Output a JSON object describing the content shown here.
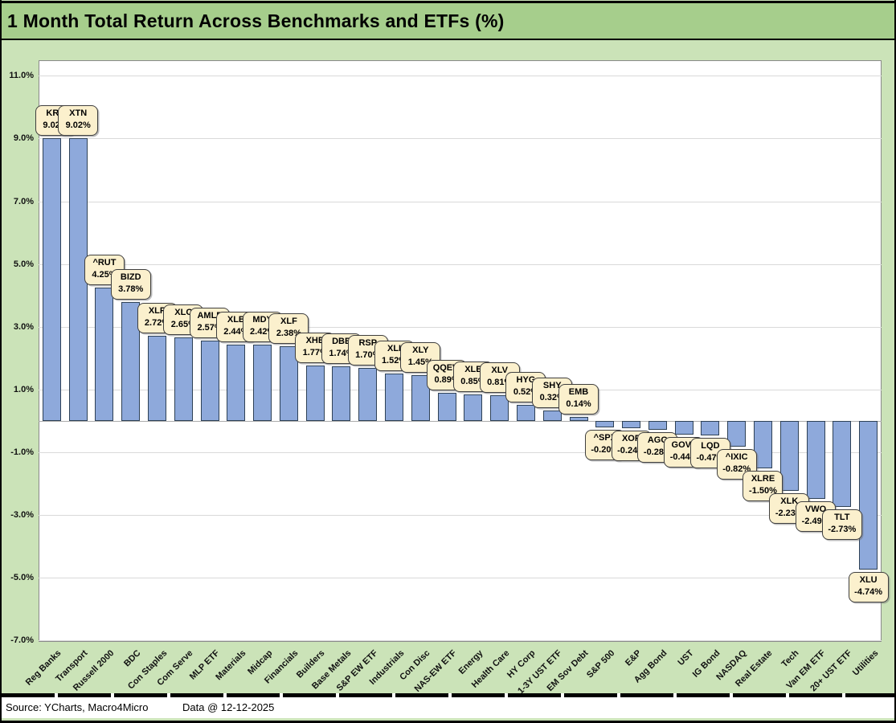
{
  "title": "1 Month Total Return Across Benchmarks and ETFs (%)",
  "footer": {
    "source": "Source: YCharts, Macro4Micro",
    "data_date": "Data @ 12-12-2025"
  },
  "colors": {
    "title_bg": "#A6CE8C",
    "body_bg": "#CBE3B8",
    "bar_fill": "#8EA9DB",
    "bar_border": "#2E4156",
    "callout_fill": "#FBF0CD",
    "callout_border": "#3F3F3F",
    "gridline": "#D9D9D9",
    "plot_border": "#8A8A8A"
  },
  "chart_data": {
    "type": "bar",
    "title": "1 Month Total Return Across Benchmarks and ETFs (%)",
    "xlabel": "",
    "ylabel": "",
    "ylim": [
      -7.0,
      11.5
    ],
    "grid": true,
    "legend": false,
    "y_tick_values": [
      11,
      9,
      7,
      5,
      3,
      1,
      -1,
      -3,
      -5,
      -7
    ],
    "y_tick_labels": [
      "11.0%",
      "9.0%",
      "7.0%",
      "5.0%",
      "3.0%",
      "1.0%",
      "-1.0%",
      "-3.0%",
      "-5.0%",
      "-7.0%"
    ],
    "categories": [
      "Reg Banks",
      "Transport",
      "Russell 2000",
      "BDC",
      "Con Staples",
      "Com Serve",
      "MLP ETF",
      "Materials",
      "Midcap",
      "Financials",
      "Builders",
      "Base Metals",
      "S&P EW ETF",
      "Industrials",
      "Con Disc",
      "NAS-EW ETF",
      "Energy",
      "Health Care",
      "HY Corp",
      "1-3Y UST ETF",
      "EM Sov Debt",
      "S&P 500",
      "E&P",
      "Agg Bond",
      "UST",
      "IG Bond",
      "NASDAQ",
      "Real Estate",
      "Tech",
      "Van EM ETF",
      "20+ UST ETF",
      "Utilities"
    ],
    "tickers": [
      "KRE",
      "XTN",
      "^RUT",
      "BIZD",
      "XLP",
      "XLC",
      "AMLP",
      "XLB",
      "MDY",
      "XLF",
      "XHB",
      "DBB",
      "RSP",
      "XLI",
      "XLY",
      "QQEW",
      "XLE",
      "XLV",
      "HYG",
      "SHY",
      "EMB",
      "^SPX",
      "XOP",
      "AGG",
      "GOVT",
      "LQD",
      "^IXIC",
      "XLRE",
      "XLK",
      "VWO",
      "TLT",
      "XLU"
    ],
    "values": [
      9.02,
      9.02,
      4.25,
      3.78,
      2.72,
      2.65,
      2.57,
      2.44,
      2.42,
      2.38,
      1.77,
      1.74,
      1.7,
      1.52,
      1.45,
      0.89,
      0.85,
      0.81,
      0.52,
      0.32,
      0.14,
      -0.2,
      -0.24,
      -0.28,
      -0.44,
      -0.47,
      -0.82,
      -1.5,
      -2.23,
      -2.49,
      -2.73,
      -4.74
    ],
    "value_labels": [
      "9.02%",
      "9.02%",
      "4.25%",
      "3.78%",
      "2.72%",
      "2.65%",
      "2.57%",
      "2.44%",
      "2.42%",
      "2.38%",
      "1.77%",
      "1.74%",
      "1.70%",
      "1.52%",
      "1.45%",
      "0.89%",
      "0.85%",
      "0.81%",
      "0.52%",
      "0.32%",
      "0.14%",
      "-0.20%",
      "-0.24%",
      "-0.28%",
      "-0.44%",
      "-0.47%",
      "-0.82%",
      "-1.50%",
      "-2.23%",
      "-2.49%",
      "-2.73%",
      "-4.74%"
    ]
  }
}
